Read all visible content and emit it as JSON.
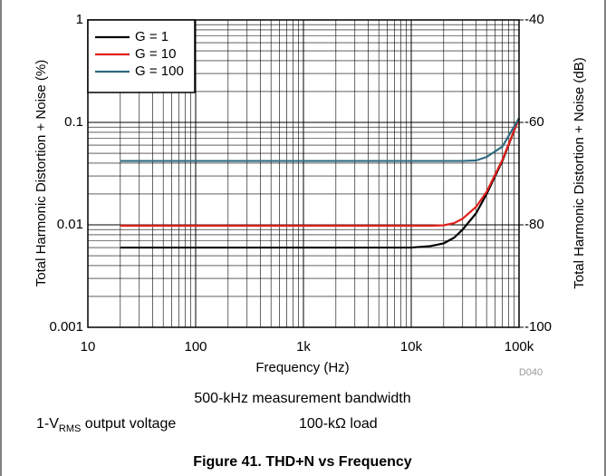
{
  "chart_data": {
    "type": "line",
    "xlabel": "Frequency (Hz)",
    "ylabel": "Total Harmonic Distortion + Noise (%)",
    "y2label": "Total Harmonic Distortion + Noise (dB)",
    "code": "D040",
    "annotation_bandwidth": "500-kHz measurement bandwidth",
    "annotation_voltage": {
      "prefix": "1-V",
      "sub": "RMS",
      "suffix": " output voltage"
    },
    "annotation_load": "100-kΩ load",
    "caption": "Figure 41. THD+N vs Frequency",
    "xscale": "log",
    "yscale": "log",
    "grid": true,
    "minor_grid": true,
    "legend": "upper left",
    "xlim": [
      10,
      100000
    ],
    "xticks": [
      10,
      100,
      {
        "value": 1000,
        "label": "1k"
      },
      {
        "value": 10000,
        "label": "10k"
      },
      {
        "value": 100000,
        "label": "100k"
      }
    ],
    "ylim": [
      0.001,
      1
    ],
    "yticks": [
      0.001,
      0.01,
      0.1,
      1
    ],
    "y2lim": [
      -100,
      -40
    ],
    "y2ticks": [
      -100,
      -80,
      -60,
      -40
    ],
    "x": [
      20,
      50,
      100,
      200,
      500,
      1000,
      2000,
      5000,
      10000,
      15000,
      20000,
      25000,
      30000,
      40000,
      50000,
      70000,
      100000
    ],
    "series": [
      {
        "name": "G = 1",
        "color": "#000000",
        "values": [
          0.006,
          0.006,
          0.006,
          0.006,
          0.006,
          0.006,
          0.006,
          0.006,
          0.006,
          0.0062,
          0.0066,
          0.0075,
          0.009,
          0.013,
          0.02,
          0.042,
          0.11
        ]
      },
      {
        "name": "G = 10",
        "color": "#e0201b",
        "values": [
          0.0098,
          0.0098,
          0.0098,
          0.0098,
          0.0098,
          0.0098,
          0.0098,
          0.0098,
          0.0098,
          0.0098,
          0.0099,
          0.0104,
          0.0115,
          0.015,
          0.021,
          0.043,
          0.11
        ]
      },
      {
        "name": "G = 100",
        "color": "#2f6a80",
        "values": [
          0.042,
          0.042,
          0.042,
          0.042,
          0.042,
          0.042,
          0.042,
          0.042,
          0.042,
          0.042,
          0.042,
          0.042,
          0.042,
          0.0425,
          0.046,
          0.058,
          0.11
        ]
      }
    ]
  }
}
